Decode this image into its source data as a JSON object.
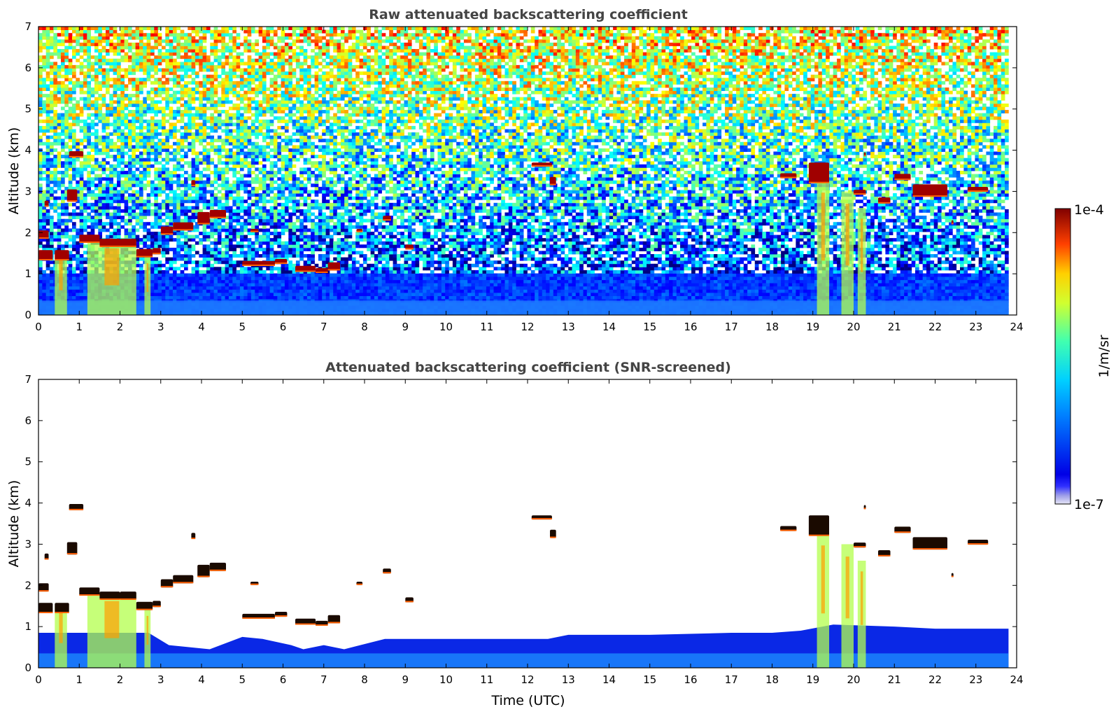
{
  "chart_data": [
    {
      "type": "heatmap",
      "title": "Raw attenuated backscattering coefficient",
      "xlabel": "",
      "ylabel": "Altitude (km)",
      "xlim": [
        0,
        24
      ],
      "ylim": [
        0,
        7
      ],
      "x_ticks": [
        "0",
        "1",
        "2",
        "3",
        "4",
        "5",
        "6",
        "7",
        "8",
        "9",
        "10",
        "11",
        "12",
        "13",
        "14",
        "15",
        "16",
        "17",
        "18",
        "19",
        "20",
        "21",
        "22",
        "23",
        "24"
      ],
      "y_ticks": [
        "0",
        "1",
        "2",
        "3",
        "4",
        "5",
        "6",
        "7"
      ],
      "data_end_time": 23.8,
      "screened": false,
      "layers": [
        {
          "t0": 0.0,
          "t1": 0.35,
          "alt": 1.45,
          "thick": 0.25
        },
        {
          "t0": 0.0,
          "t1": 0.25,
          "alt": 1.95,
          "thick": 0.2
        },
        {
          "t0": 0.15,
          "t1": 0.25,
          "alt": 2.7,
          "thick": 0.15
        },
        {
          "t0": 0.4,
          "t1": 0.75,
          "alt": 1.45,
          "thick": 0.25
        },
        {
          "t0": 0.7,
          "t1": 0.95,
          "alt": 2.9,
          "thick": 0.3
        },
        {
          "t0": 0.75,
          "t1": 1.1,
          "alt": 3.9,
          "thick": 0.15
        },
        {
          "t0": 1.0,
          "t1": 1.5,
          "alt": 1.85,
          "thick": 0.2
        },
        {
          "t0": 1.5,
          "t1": 2.0,
          "alt": 1.75,
          "thick": 0.2
        },
        {
          "t0": 2.0,
          "t1": 2.4,
          "alt": 1.75,
          "thick": 0.2
        },
        {
          "t0": 2.4,
          "t1": 2.8,
          "alt": 1.5,
          "thick": 0.2
        },
        {
          "t0": 2.8,
          "t1": 3.0,
          "alt": 1.55,
          "thick": 0.15
        },
        {
          "t0": 3.0,
          "t1": 3.3,
          "alt": 2.05,
          "thick": 0.2
        },
        {
          "t0": 3.3,
          "t1": 3.8,
          "alt": 2.15,
          "thick": 0.2
        },
        {
          "t0": 3.75,
          "t1": 3.85,
          "alt": 3.2,
          "thick": 0.15
        },
        {
          "t0": 3.9,
          "t1": 4.2,
          "alt": 2.35,
          "thick": 0.3
        },
        {
          "t0": 4.2,
          "t1": 4.6,
          "alt": 2.45,
          "thick": 0.2
        },
        {
          "t0": 5.2,
          "t1": 5.4,
          "alt": 2.05,
          "thick": 0.08
        },
        {
          "t0": 5.0,
          "t1": 5.8,
          "alt": 1.25,
          "thick": 0.12
        },
        {
          "t0": 5.8,
          "t1": 6.1,
          "alt": 1.3,
          "thick": 0.12
        },
        {
          "t0": 6.3,
          "t1": 6.8,
          "alt": 1.12,
          "thick": 0.15
        },
        {
          "t0": 6.8,
          "t1": 7.1,
          "alt": 1.08,
          "thick": 0.12
        },
        {
          "t0": 7.1,
          "t1": 7.4,
          "alt": 1.18,
          "thick": 0.2
        },
        {
          "t0": 7.8,
          "t1": 7.95,
          "alt": 2.05,
          "thick": 0.08
        },
        {
          "t0": 8.45,
          "t1": 8.65,
          "alt": 2.35,
          "thick": 0.12
        },
        {
          "t0": 9.0,
          "t1": 9.2,
          "alt": 1.65,
          "thick": 0.12
        },
        {
          "t0": 12.1,
          "t1": 12.6,
          "alt": 3.65,
          "thick": 0.1
        },
        {
          "t0": 12.55,
          "t1": 12.7,
          "alt": 3.25,
          "thick": 0.2
        },
        {
          "t0": 18.2,
          "t1": 18.6,
          "alt": 3.38,
          "thick": 0.12
        },
        {
          "t0": 18.9,
          "t1": 19.4,
          "alt": 3.45,
          "thick": 0.5
        },
        {
          "t0": 20.0,
          "t1": 20.3,
          "alt": 2.98,
          "thick": 0.12
        },
        {
          "t0": 20.25,
          "t1": 20.3,
          "alt": 3.9,
          "thick": 0.1
        },
        {
          "t0": 20.6,
          "t1": 20.9,
          "alt": 2.78,
          "thick": 0.15
        },
        {
          "t0": 21.0,
          "t1": 21.4,
          "alt": 3.35,
          "thick": 0.15
        },
        {
          "t0": 21.45,
          "t1": 22.3,
          "alt": 3.02,
          "thick": 0.3
        },
        {
          "t0": 22.4,
          "t1": 22.45,
          "alt": 2.25,
          "thick": 0.1
        },
        {
          "t0": 22.8,
          "t1": 23.3,
          "alt": 3.05,
          "thick": 0.12
        }
      ],
      "plumes": [
        {
          "t0": 0.4,
          "t1": 0.7,
          "top": 1.5
        },
        {
          "t0": 1.2,
          "t1": 2.4,
          "top": 1.8
        },
        {
          "t0": 2.6,
          "t1": 2.75,
          "top": 1.4
        },
        {
          "t0": 19.1,
          "t1": 19.4,
          "top": 3.3
        },
        {
          "t0": 19.7,
          "t1": 20.0,
          "top": 3.0
        },
        {
          "t0": 20.1,
          "t1": 20.3,
          "top": 2.6
        }
      ]
    },
    {
      "type": "heatmap",
      "title": "Attenuated backscattering coefficient (SNR-screened)",
      "xlabel": "Time (UTC)",
      "ylabel": "Altitude (km)",
      "xlim": [
        0,
        24
      ],
      "ylim": [
        0,
        7
      ],
      "x_ticks": [
        "0",
        "1",
        "2",
        "3",
        "4",
        "5",
        "6",
        "7",
        "8",
        "9",
        "10",
        "11",
        "12",
        "13",
        "14",
        "15",
        "16",
        "17",
        "18",
        "19",
        "20",
        "21",
        "22",
        "23",
        "24"
      ],
      "y_ticks": [
        "0",
        "1",
        "2",
        "3",
        "4",
        "5",
        "6",
        "7"
      ],
      "data_end_time": 23.8,
      "screened": true,
      "boundary_layer_top": [
        [
          0,
          0.85
        ],
        [
          2.7,
          0.85
        ],
        [
          3.2,
          0.55
        ],
        [
          4.2,
          0.45
        ],
        [
          5.0,
          0.75
        ],
        [
          5.5,
          0.7
        ],
        [
          6.2,
          0.55
        ],
        [
          6.5,
          0.45
        ],
        [
          7.0,
          0.55
        ],
        [
          7.5,
          0.45
        ],
        [
          8.5,
          0.7
        ],
        [
          10,
          0.7
        ],
        [
          12.5,
          0.7
        ],
        [
          13,
          0.8
        ],
        [
          15,
          0.8
        ],
        [
          17,
          0.85
        ],
        [
          18,
          0.85
        ],
        [
          18.7,
          0.9
        ],
        [
          19.5,
          1.05
        ],
        [
          21,
          1.0
        ],
        [
          22,
          0.95
        ],
        [
          23.8,
          0.95
        ]
      ]
    }
  ],
  "colorbar": {
    "label": "1/m/sr",
    "max_label": "1e-4",
    "min_label": "1e-7",
    "colormap": "jet"
  }
}
